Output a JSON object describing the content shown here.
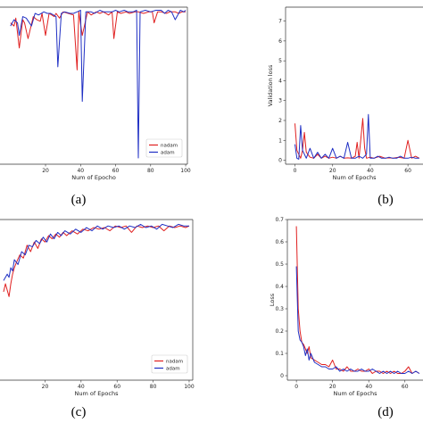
{
  "colors": {
    "nadam": "#e02020",
    "adam": "#1f2fc4",
    "axis": "#333333"
  },
  "chart_data": [
    {
      "id": "a",
      "type": "line",
      "caption": "(a)",
      "xlabel": "Num of Epocho",
      "ylabel": "",
      "xlim": [
        -6,
        101
      ],
      "ylim": [
        0.0,
        1.0
      ],
      "xticks": [
        20,
        40,
        60,
        80,
        100
      ],
      "yticks": [],
      "legend": "bottom-right",
      "series": [
        {
          "name": "nadam",
          "x": [
            0,
            2,
            3,
            5,
            7,
            8,
            10,
            13,
            15,
            17,
            18,
            20,
            22,
            25,
            26,
            28,
            30,
            33,
            36,
            38,
            39,
            41,
            44,
            46,
            49,
            51,
            53,
            56,
            58,
            59,
            61,
            63,
            66,
            68,
            71,
            73,
            76,
            79,
            81,
            82,
            84,
            86,
            89,
            91,
            94,
            96,
            98,
            100
          ],
          "y": [
            0.9,
            0.88,
            0.93,
            0.74,
            0.92,
            0.9,
            0.8,
            0.94,
            0.92,
            0.91,
            0.96,
            0.82,
            0.96,
            0.94,
            0.96,
            0.93,
            0.97,
            0.96,
            0.95,
            0.6,
            0.97,
            0.82,
            0.97,
            0.95,
            0.97,
            0.96,
            0.97,
            0.95,
            0.97,
            0.8,
            0.97,
            0.96,
            0.97,
            0.96,
            0.97,
            0.97,
            0.96,
            0.97,
            0.97,
            0.9,
            0.97,
            0.97,
            0.96,
            0.97,
            0.97,
            0.96,
            0.97,
            0.97
          ]
        },
        {
          "name": "adam",
          "x": [
            0,
            2,
            4,
            5,
            7,
            9,
            12,
            14,
            16,
            19,
            21,
            23,
            26,
            27,
            29,
            31,
            34,
            36,
            38,
            40,
            41,
            43,
            46,
            48,
            51,
            53,
            55,
            58,
            60,
            62,
            65,
            67,
            70,
            72,
            73,
            74,
            77,
            80,
            83,
            86,
            88,
            90,
            92,
            94,
            97,
            99,
            100
          ],
          "y": [
            0.88,
            0.92,
            0.9,
            0.82,
            0.94,
            0.93,
            0.88,
            0.96,
            0.95,
            0.97,
            0.96,
            0.96,
            0.94,
            0.62,
            0.96,
            0.97,
            0.96,
            0.96,
            0.97,
            0.98,
            0.4,
            0.97,
            0.97,
            0.96,
            0.98,
            0.97,
            0.97,
            0.97,
            0.98,
            0.97,
            0.98,
            0.97,
            0.97,
            0.98,
            0.04,
            0.97,
            0.98,
            0.97,
            0.98,
            0.98,
            0.96,
            0.98,
            0.97,
            0.92,
            0.98,
            0.97,
            0.98
          ]
        }
      ],
      "legend_labels": [
        "nadam",
        "adam"
      ]
    },
    {
      "id": "b",
      "type": "line",
      "caption": "(b)",
      "xlabel": "Num of Epochs",
      "ylabel": "Validation loss",
      "xlim": [
        -5,
        68
      ],
      "ylim": [
        -0.2,
        7.7
      ],
      "xticks": [
        0,
        20,
        40,
        60
      ],
      "yticks": [
        0,
        1,
        2,
        3,
        4,
        5,
        6,
        7
      ],
      "legend": "none",
      "series": [
        {
          "name": "nadam",
          "x": [
            0,
            1,
            2,
            3,
            4,
            5,
            6,
            8,
            10,
            12,
            14,
            16,
            18,
            20,
            22,
            24,
            26,
            28,
            30,
            32,
            33,
            34,
            36,
            37,
            38,
            40,
            42,
            45,
            48,
            50,
            52,
            55,
            58,
            60,
            62,
            64,
            66
          ],
          "y": [
            1.85,
            0.5,
            0.3,
            0.1,
            0.5,
            1.4,
            0.4,
            0.15,
            0.1,
            0.3,
            0.1,
            0.2,
            0.1,
            0.15,
            0.1,
            0.2,
            0.1,
            0.12,
            0.1,
            0.2,
            0.9,
            0.1,
            2.1,
            0.6,
            0.1,
            0.15,
            0.1,
            0.2,
            0.1,
            0.12,
            0.1,
            0.15,
            0.1,
            1.0,
            0.1,
            0.2,
            0.1
          ]
        },
        {
          "name": "adam",
          "x": [
            0,
            1,
            2,
            3,
            4,
            6,
            8,
            10,
            12,
            14,
            16,
            18,
            20,
            22,
            24,
            26,
            28,
            30,
            32,
            34,
            36,
            38,
            39,
            40,
            42,
            44,
            46,
            48,
            50,
            52,
            54,
            56,
            58,
            60,
            62,
            64,
            66
          ],
          "y": [
            0.8,
            0.1,
            0.05,
            1.75,
            0.5,
            0.1,
            0.6,
            0.1,
            0.4,
            0.1,
            0.3,
            0.1,
            0.6,
            0.1,
            0.2,
            0.1,
            0.9,
            0.1,
            0.1,
            0.2,
            0.1,
            0.3,
            2.3,
            0.1,
            0.1,
            0.2,
            0.1,
            0.1,
            0.15,
            0.1,
            0.1,
            0.2,
            0.1,
            0.1,
            0.15,
            0.1,
            0.1
          ]
        }
      ],
      "legend_labels": []
    },
    {
      "id": "c",
      "type": "line",
      "caption": "(c)",
      "xlabel": "Num of Epochs",
      "ylabel": "",
      "xlim": [
        -5,
        102
      ],
      "ylim": [
        0.0,
        1.0
      ],
      "xticks": [
        20,
        40,
        60,
        80,
        100
      ],
      "yticks": [],
      "legend": "bottom-right",
      "series": [
        {
          "name": "nadam",
          "x": [
            -3,
            -2,
            0,
            1,
            2,
            3,
            4,
            6,
            8,
            10,
            12,
            14,
            16,
            18,
            20,
            22,
            24,
            26,
            28,
            30,
            32,
            35,
            38,
            41,
            44,
            47,
            50,
            53,
            56,
            59,
            62,
            65,
            68,
            71,
            74,
            77,
            80,
            83,
            86,
            89,
            92,
            95,
            98,
            100
          ],
          "y": [
            0.55,
            0.6,
            0.52,
            0.6,
            0.66,
            0.7,
            0.73,
            0.78,
            0.76,
            0.84,
            0.8,
            0.86,
            0.82,
            0.88,
            0.86,
            0.9,
            0.88,
            0.91,
            0.89,
            0.92,
            0.9,
            0.93,
            0.91,
            0.94,
            0.93,
            0.95,
            0.94,
            0.95,
            0.93,
            0.96,
            0.95,
            0.96,
            0.92,
            0.96,
            0.95,
            0.96,
            0.95,
            0.96,
            0.93,
            0.96,
            0.95,
            0.96,
            0.95,
            0.96
          ]
        },
        {
          "name": "adam",
          "x": [
            -3,
            -1,
            0,
            1,
            2,
            3,
            5,
            7,
            9,
            11,
            13,
            15,
            17,
            19,
            21,
            23,
            25,
            27,
            29,
            31,
            34,
            37,
            40,
            43,
            46,
            49,
            52,
            55,
            58,
            61,
            64,
            67,
            70,
            73,
            76,
            79,
            82,
            85,
            88,
            91,
            94,
            97,
            100
          ],
          "y": [
            0.62,
            0.66,
            0.64,
            0.7,
            0.68,
            0.75,
            0.72,
            0.8,
            0.78,
            0.84,
            0.83,
            0.87,
            0.85,
            0.89,
            0.86,
            0.91,
            0.88,
            0.92,
            0.9,
            0.93,
            0.91,
            0.94,
            0.92,
            0.95,
            0.93,
            0.96,
            0.94,
            0.96,
            0.95,
            0.96,
            0.94,
            0.96,
            0.95,
            0.97,
            0.95,
            0.96,
            0.94,
            0.97,
            0.96,
            0.95,
            0.97,
            0.96,
            0.96
          ]
        }
      ],
      "legend_labels": [
        "nadam",
        "adam"
      ]
    },
    {
      "id": "d",
      "type": "line",
      "caption": "(d)",
      "xlabel": "Num of Epochs",
      "ylabel": "Loss",
      "xlim": [
        -5,
        70
      ],
      "ylim": [
        -0.02,
        0.7
      ],
      "xticks": [
        0,
        20,
        40,
        60
      ],
      "yticks": [
        0.0,
        0.1,
        0.2,
        0.3,
        0.4,
        0.5,
        0.6,
        0.7
      ],
      "legend": "none",
      "series": [
        {
          "name": "nadam",
          "x": [
            0,
            1,
            2,
            3,
            4,
            5,
            6,
            7,
            8,
            10,
            12,
            14,
            16,
            18,
            20,
            22,
            24,
            26,
            28,
            30,
            32,
            34,
            36,
            38,
            40,
            42,
            44,
            46,
            48,
            50,
            52,
            54,
            56,
            58,
            60,
            62,
            64,
            66,
            68
          ],
          "y": [
            0.67,
            0.3,
            0.2,
            0.15,
            0.14,
            0.12,
            0.1,
            0.13,
            0.08,
            0.07,
            0.06,
            0.05,
            0.05,
            0.04,
            0.07,
            0.03,
            0.03,
            0.02,
            0.04,
            0.02,
            0.02,
            0.03,
            0.02,
            0.02,
            0.03,
            0.01,
            0.02,
            0.02,
            0.01,
            0.02,
            0.01,
            0.02,
            0.01,
            0.01,
            0.02,
            0.04,
            0.01,
            0.02,
            0.01
          ]
        },
        {
          "name": "adam",
          "x": [
            0,
            1,
            2,
            3,
            4,
            5,
            6,
            7,
            8,
            10,
            12,
            14,
            16,
            18,
            20,
            22,
            24,
            26,
            28,
            30,
            32,
            34,
            36,
            38,
            40,
            42,
            44,
            46,
            48,
            50,
            52,
            54,
            56,
            58,
            60,
            62,
            64,
            66,
            68
          ],
          "y": [
            0.49,
            0.2,
            0.16,
            0.15,
            0.13,
            0.09,
            0.12,
            0.07,
            0.1,
            0.06,
            0.05,
            0.04,
            0.04,
            0.03,
            0.03,
            0.04,
            0.02,
            0.03,
            0.02,
            0.03,
            0.02,
            0.02,
            0.03,
            0.02,
            0.02,
            0.03,
            0.02,
            0.01,
            0.02,
            0.01,
            0.02,
            0.01,
            0.02,
            0.01,
            0.01,
            0.02,
            0.01,
            0.02,
            0.01
          ]
        }
      ],
      "legend_labels": []
    }
  ]
}
